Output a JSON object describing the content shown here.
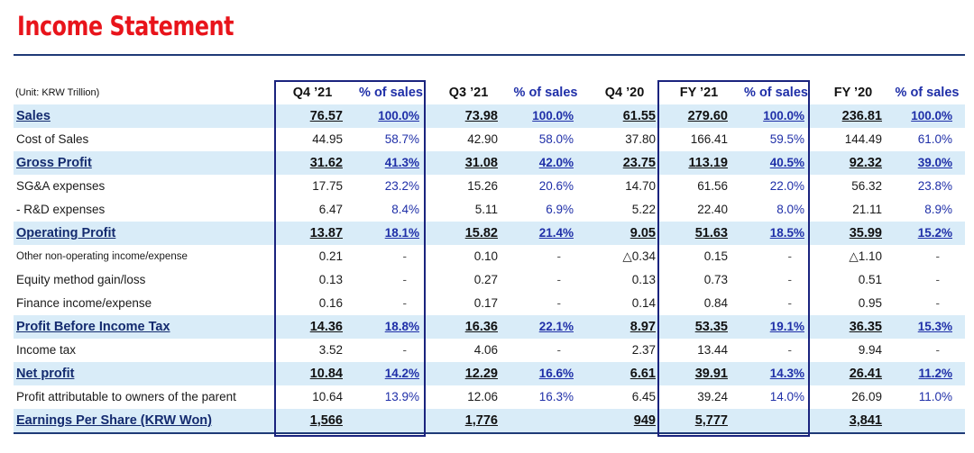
{
  "title": "Income Statement",
  "unit_label": "(Unit: KRW Trillion)",
  "columns": [
    "Q4 ’21",
    "% of sales",
    "Q3 ’21",
    "% of sales",
    "Q4 ’20",
    "FY ’21",
    "% of sales",
    "FY ’20",
    "% of sales"
  ],
  "rows": [
    {
      "label": "Sales",
      "highlight": true,
      "cells": [
        "76.57",
        "100.0%",
        "73.98",
        "100.0%",
        "61.55",
        "279.60",
        "100.0%",
        "236.81",
        "100.0%"
      ]
    },
    {
      "label": "Cost of Sales",
      "highlight": false,
      "cells": [
        "44.95",
        "58.7%",
        "42.90",
        "58.0%",
        "37.80",
        "166.41",
        "59.5%",
        "144.49",
        "61.0%"
      ]
    },
    {
      "label": "Gross Profit",
      "highlight": true,
      "cells": [
        "31.62",
        "41.3%",
        "31.08",
        "42.0%",
        "23.75",
        "113.19",
        "40.5%",
        "92.32",
        "39.0%"
      ]
    },
    {
      "label": "SG&A expenses",
      "highlight": false,
      "cells": [
        "17.75",
        "23.2%",
        "15.26",
        "20.6%",
        "14.70",
        "61.56",
        "22.0%",
        "56.32",
        "23.8%"
      ]
    },
    {
      "label": " - R&D expenses",
      "highlight": false,
      "cells": [
        "6.47",
        "8.4%",
        "5.11",
        "6.9%",
        "5.22",
        "22.40",
        "8.0%",
        "21.11",
        "8.9%"
      ]
    },
    {
      "label": "Operating Profit",
      "highlight": true,
      "cells": [
        "13.87",
        "18.1%",
        "15.82",
        "21.4%",
        "9.05",
        "51.63",
        "18.5%",
        "35.99",
        "15.2%"
      ]
    },
    {
      "label": "Other non-operating income/expense",
      "highlight": false,
      "small": true,
      "cells": [
        "0.21",
        "-",
        "0.10",
        "-",
        "△0.34",
        "0.15",
        "-",
        "△1.10",
        "-"
      ]
    },
    {
      "label": "Equity method gain/loss",
      "highlight": false,
      "cells": [
        "0.13",
        "-",
        "0.27",
        "-",
        "0.13",
        "0.73",
        "-",
        "0.51",
        "-"
      ]
    },
    {
      "label": "Finance income/expense",
      "highlight": false,
      "cells": [
        "0.16",
        "-",
        "0.17",
        "-",
        "0.14",
        "0.84",
        "-",
        "0.95",
        "-"
      ]
    },
    {
      "label": "Profit Before Income Tax",
      "highlight": true,
      "cells": [
        "14.36",
        "18.8%",
        "16.36",
        "22.1%",
        "8.97",
        "53.35",
        "19.1%",
        "36.35",
        "15.3%"
      ]
    },
    {
      "label": "Income tax",
      "highlight": false,
      "cells": [
        "3.52",
        "-",
        "4.06",
        "-",
        "2.37",
        "13.44",
        "-",
        "9.94",
        "-"
      ]
    },
    {
      "label": "Net profit",
      "highlight": true,
      "cells": [
        "10.84",
        "14.2%",
        "12.29",
        "16.6%",
        "6.61",
        "39.91",
        "14.3%",
        "26.41",
        "11.2%"
      ]
    },
    {
      "label": "Profit attributable to owners of the parent",
      "highlight": false,
      "cells": [
        "10.64",
        "13.9%",
        "12.06",
        "16.3%",
        "6.45",
        "39.24",
        "14.0%",
        "26.09",
        "11.0%"
      ]
    },
    {
      "label": "Earnings Per Share (KRW Won)",
      "highlight": true,
      "last": true,
      "cells": [
        "1,566",
        "",
        "1,776",
        "",
        "949",
        "5,777",
        "",
        "3,841",
        ""
      ]
    }
  ],
  "colors": {
    "title": "#e8141b",
    "highlight_row": "#d9ecf8",
    "box": "#1a237e",
    "percent": "#1f2fa8"
  }
}
